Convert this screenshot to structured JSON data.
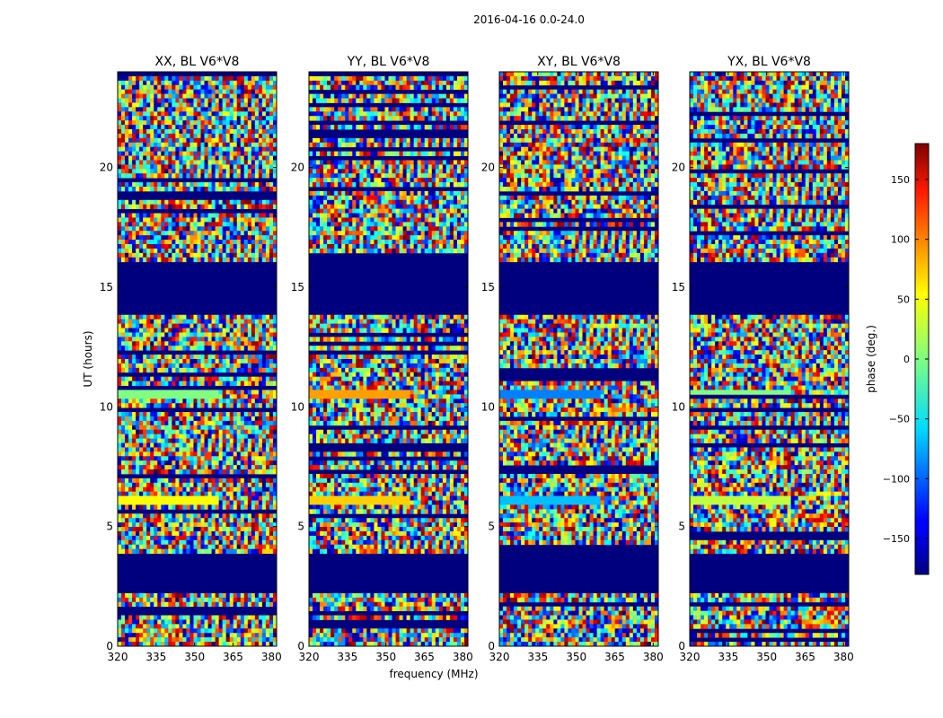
{
  "chart_data": {
    "type": "heatmap",
    "suptitle": "2016-04-16 0.0-24.0",
    "xlabel": "frequency (MHz)",
    "ylabel": "UT (hours)",
    "xlim": [
      320,
      382
    ],
    "ylim": [
      0,
      24
    ],
    "xticks": [
      320,
      335,
      350,
      365,
      380
    ],
    "yticks": [
      0,
      5,
      10,
      15,
      20
    ],
    "panels": [
      {
        "title": "XX, BL V6*V8",
        "band_colors": [
          "#80ff80",
          "#ffff00"
        ]
      },
      {
        "title": "YY, BL V6*V8",
        "band_colors": [
          "#ffa000",
          "#ffd000"
        ]
      },
      {
        "title": "XY, BL V6*V8",
        "band_colors": [
          "#0080ff",
          "#00c0ff"
        ]
      },
      {
        "title": "YX, BL V6*V8",
        "band_colors": [
          "#80ff80",
          "#c0ff40"
        ]
      }
    ],
    "flagged_ut_ranges": [
      [
        2.2,
        3.8
      ],
      [
        13.8,
        16.0
      ]
    ],
    "bright_bands_ut": [
      [
        10.3,
        10.7
      ],
      [
        6.0,
        6.3
      ]
    ],
    "colorbar": {
      "label": "phase (deg.)",
      "range": [
        -180,
        180
      ],
      "ticks": [
        -150,
        -100,
        -50,
        0,
        50,
        100,
        150
      ],
      "colormap": "jet"
    }
  }
}
